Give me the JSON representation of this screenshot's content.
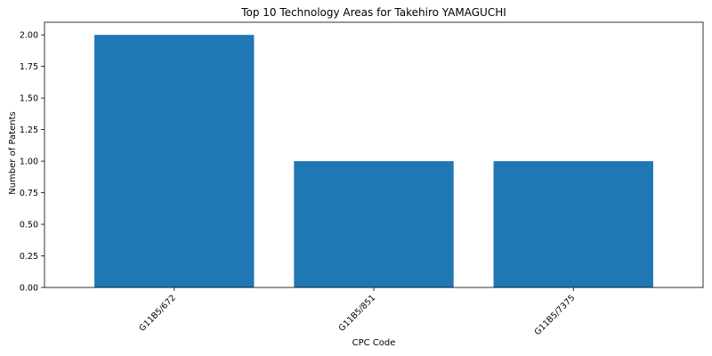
{
  "chart_data": {
    "type": "bar",
    "title": "Top 10 Technology Areas for Takehiro YAMAGUCHI",
    "xlabel": "CPC Code",
    "ylabel": "Number of Patents",
    "categories": [
      "G11B5/672",
      "G11B5/851",
      "G11B5/7375"
    ],
    "values": [
      2,
      1,
      1
    ],
    "ylim": [
      0,
      2.1
    ],
    "yticks": [
      "0.00",
      "0.25",
      "0.50",
      "0.75",
      "1.00",
      "1.25",
      "1.50",
      "1.75",
      "2.00"
    ],
    "grid": false,
    "bar_color": "#1f77b4"
  }
}
